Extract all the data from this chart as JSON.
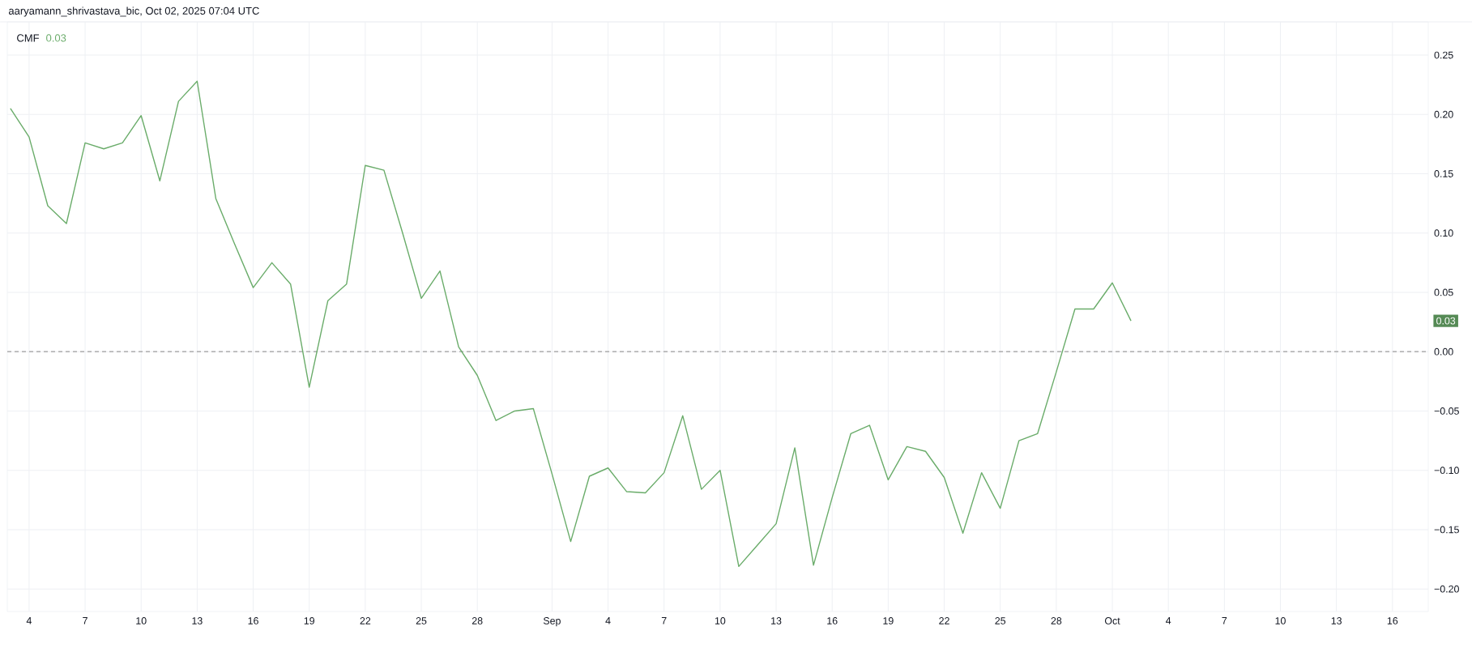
{
  "chart_data": {
    "type": "line",
    "title": "aaryamann_shrivastava_bic, Oct 02, 2025 07:04 UTC",
    "x": [
      "2025-08-03",
      "2025-08-04",
      "2025-08-05",
      "2025-08-06",
      "2025-08-07",
      "2025-08-08",
      "2025-08-09",
      "2025-08-10",
      "2025-08-11",
      "2025-08-12",
      "2025-08-13",
      "2025-08-14",
      "2025-08-15",
      "2025-08-16",
      "2025-08-17",
      "2025-08-18",
      "2025-08-19",
      "2025-08-20",
      "2025-08-21",
      "2025-08-22",
      "2025-08-23",
      "2025-08-24",
      "2025-08-25",
      "2025-08-26",
      "2025-08-27",
      "2025-08-28",
      "2025-08-29",
      "2025-08-30",
      "2025-08-31",
      "2025-09-01",
      "2025-09-02",
      "2025-09-03",
      "2025-09-04",
      "2025-09-05",
      "2025-09-06",
      "2025-09-07",
      "2025-09-08",
      "2025-09-09",
      "2025-09-10",
      "2025-09-11",
      "2025-09-12",
      "2025-09-13",
      "2025-09-14",
      "2025-09-15",
      "2025-09-16",
      "2025-09-17",
      "2025-09-18",
      "2025-09-19",
      "2025-09-20",
      "2025-09-21",
      "2025-09-22",
      "2025-09-23",
      "2025-09-24",
      "2025-09-25",
      "2025-09-26",
      "2025-09-27",
      "2025-09-28",
      "2025-09-29",
      "2025-09-30",
      "2025-10-01",
      "2025-10-02"
    ],
    "series": [
      {
        "name": "CMF",
        "color": "#6aac6a",
        "values": [
          0.205,
          0.181,
          0.123,
          0.108,
          0.176,
          0.171,
          0.176,
          0.199,
          0.144,
          0.211,
          0.228,
          0.129,
          0.091,
          0.054,
          0.075,
          0.057,
          -0.03,
          0.043,
          0.057,
          0.157,
          0.153,
          0.1,
          0.045,
          0.068,
          0.004,
          -0.02,
          -0.058,
          -0.05,
          -0.048,
          -0.103,
          -0.16,
          -0.105,
          -0.098,
          -0.118,
          -0.119,
          -0.102,
          -0.054,
          -0.116,
          -0.1,
          -0.181,
          -0.163,
          -0.145,
          -0.081,
          -0.18,
          -0.123,
          -0.069,
          -0.062,
          -0.108,
          -0.08,
          -0.084,
          -0.106,
          -0.153,
          -0.102,
          -0.132,
          -0.075,
          -0.069,
          -0.017,
          0.036,
          0.036,
          0.058,
          0.026
        ]
      }
    ],
    "xlim": [
      "2025-08-02T20:00",
      "2025-10-17T22:00"
    ],
    "xticks": [
      {
        "value": "2025-08-04",
        "label": "4"
      },
      {
        "value": "2025-08-07",
        "label": "7"
      },
      {
        "value": "2025-08-10",
        "label": "10"
      },
      {
        "value": "2025-08-13",
        "label": "13"
      },
      {
        "value": "2025-08-16",
        "label": "16"
      },
      {
        "value": "2025-08-19",
        "label": "19"
      },
      {
        "value": "2025-08-22",
        "label": "22"
      },
      {
        "value": "2025-08-25",
        "label": "25"
      },
      {
        "value": "2025-08-28",
        "label": "28"
      },
      {
        "value": "2025-09-01",
        "label": "Sep"
      },
      {
        "value": "2025-09-04",
        "label": "4"
      },
      {
        "value": "2025-09-07",
        "label": "7"
      },
      {
        "value": "2025-09-10",
        "label": "10"
      },
      {
        "value": "2025-09-13",
        "label": "13"
      },
      {
        "value": "2025-09-16",
        "label": "16"
      },
      {
        "value": "2025-09-19",
        "label": "19"
      },
      {
        "value": "2025-09-22",
        "label": "22"
      },
      {
        "value": "2025-09-25",
        "label": "25"
      },
      {
        "value": "2025-09-28",
        "label": "28"
      },
      {
        "value": "2025-10-01",
        "label": "Oct"
      },
      {
        "value": "2025-10-04",
        "label": "4"
      },
      {
        "value": "2025-10-07",
        "label": "7"
      },
      {
        "value": "2025-10-10",
        "label": "10"
      },
      {
        "value": "2025-10-13",
        "label": "13"
      },
      {
        "value": "2025-10-16",
        "label": "16"
      }
    ],
    "ylim": [
      -0.219,
      0.278
    ],
    "yticks": [
      {
        "value": -0.2,
        "label": "−0.20"
      },
      {
        "value": -0.15,
        "label": "−0.15"
      },
      {
        "value": -0.1,
        "label": "−0.10"
      },
      {
        "value": -0.05,
        "label": "−0.05"
      },
      {
        "value": 0,
        "label": "0.00"
      },
      {
        "value": 0.05,
        "label": "0.05"
      },
      {
        "value": 0.1,
        "label": "0.10"
      },
      {
        "value": 0.15,
        "label": "0.15"
      },
      {
        "value": 0.2,
        "label": "0.20"
      },
      {
        "value": 0.25,
        "label": "0.25"
      }
    ],
    "ref_lines": [
      {
        "axis": "y",
        "value": 0,
        "color": "#9e9e9e",
        "line_style": "dashed"
      }
    ],
    "annotations": [
      "0.03",
      "0.03"
    ],
    "grid": true,
    "legend": "top left",
    "line_style": "solid"
  }
}
